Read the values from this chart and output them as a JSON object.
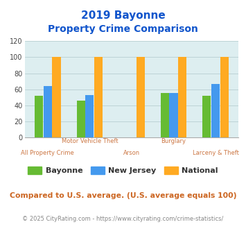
{
  "title_line1": "2019 Bayonne",
  "title_line2": "Property Crime Comparison",
  "categories": [
    "All Property Crime",
    "Motor Vehicle Theft",
    "Arson",
    "Burglary",
    "Larceny & Theft"
  ],
  "bayonne": [
    52,
    46,
    0,
    55,
    52
  ],
  "new_jersey": [
    64,
    53,
    0,
    55,
    67
  ],
  "national": [
    100,
    100,
    100,
    100,
    100
  ],
  "colors": {
    "bayonne": "#66bb33",
    "new_jersey": "#4499ee",
    "national": "#ffaa22"
  },
  "ylim": [
    0,
    120
  ],
  "yticks": [
    0,
    20,
    40,
    60,
    80,
    100,
    120
  ],
  "title_color": "#1155cc",
  "xlabel_color": "#cc7744",
  "footer_note": "Compared to U.S. average. (U.S. average equals 100)",
  "footer_credit": "© 2025 CityRating.com - https://www.cityrating.com/crime-statistics/",
  "bg_color": "#ddeef0",
  "legend_labels": [
    "Bayonne",
    "New Jersey",
    "National"
  ],
  "bar_width": 0.2,
  "bar_gap": 0.01
}
